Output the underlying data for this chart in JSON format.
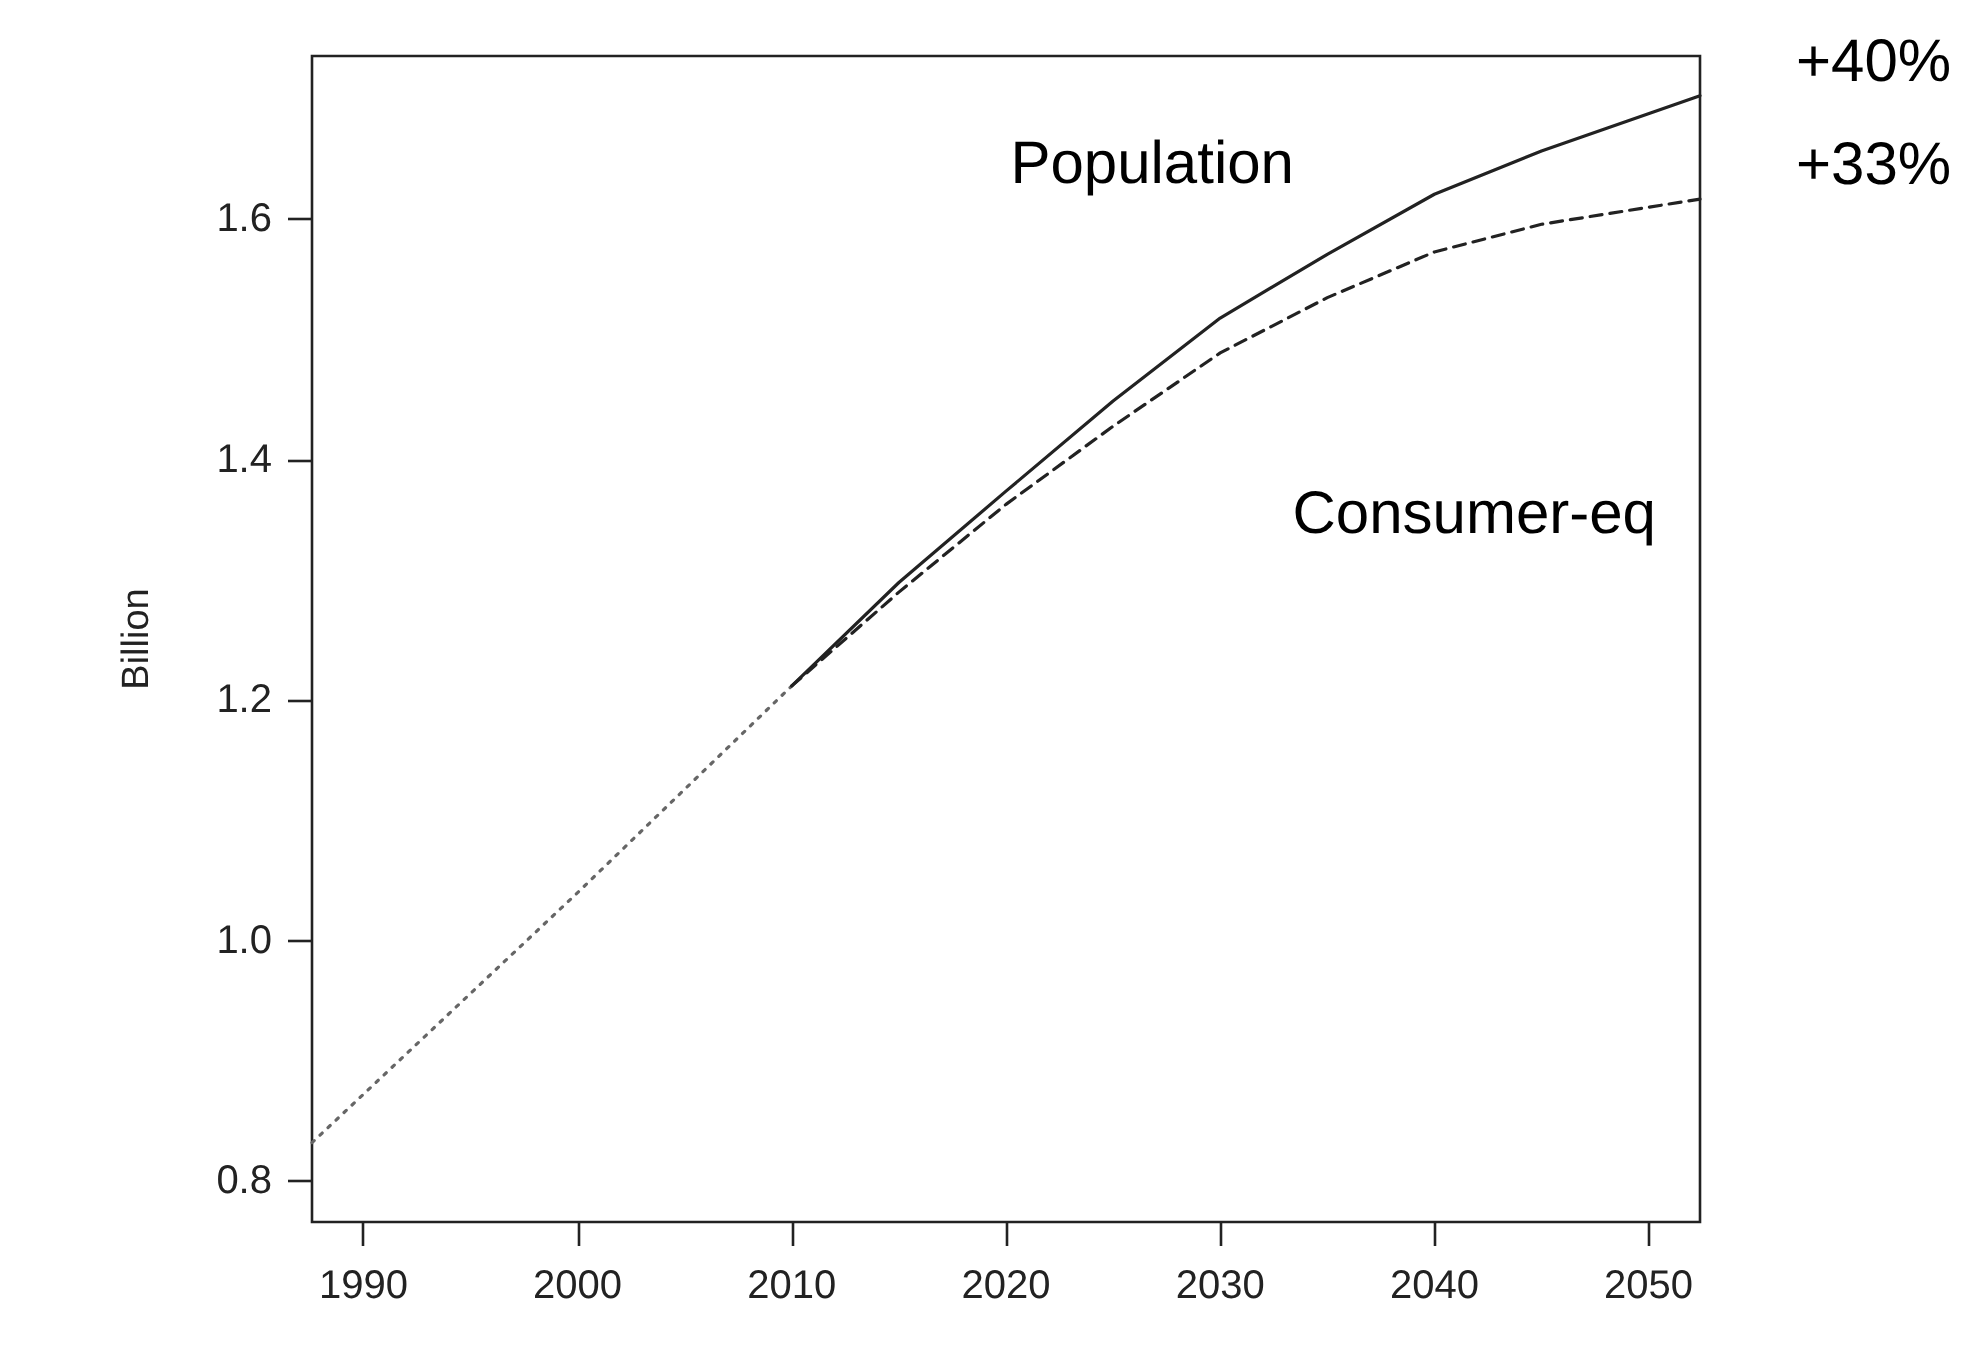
{
  "chart_data": {
    "type": "line",
    "ylabel": "Billion",
    "series": [
      {
        "color": "#666666",
        "line_style": "dotted",
        "x": [
          1987.6,
          2000,
          2010
        ],
        "values": [
          0.832,
          1.04,
          1.212
        ]
      },
      {
        "name": "Population",
        "color": "#222222",
        "line_style": "solid",
        "x": [
          2010,
          2015,
          2020,
          2025,
          2030,
          2035,
          2040,
          2045,
          2052.4
        ],
        "values": [
          1.212,
          1.298,
          1.374,
          1.449,
          1.518,
          1.571,
          1.621,
          1.657,
          1.703
        ]
      },
      {
        "name": "Consumer-eq",
        "color": "#222222",
        "line_style": "dashed",
        "x": [
          2010,
          2015,
          2020,
          2025,
          2030,
          2035,
          2040,
          2045,
          2052.4
        ],
        "values": [
          1.212,
          1.29,
          1.363,
          1.428,
          1.489,
          1.535,
          1.573,
          1.596,
          1.617
        ]
      }
    ],
    "annotations": [
      "+40%",
      "+33%"
    ],
    "xlim": [
      1987.6,
      2052.4
    ],
    "xticks": [
      1990,
      2000,
      2010,
      2020,
      2030,
      2040,
      2050
    ],
    "ylim": [
      0.766,
      1.736
    ],
    "yticks": [
      0.8,
      {
        "value": 1.0,
        "label": "1.0"
      },
      1.2,
      1.4,
      1.6
    ],
    "marker": "none",
    "grid": false,
    "legend": false
  }
}
